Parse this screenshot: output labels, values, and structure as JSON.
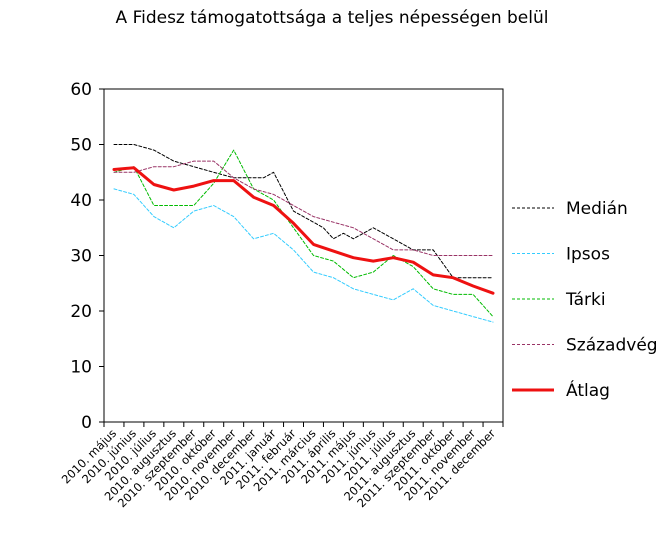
{
  "chart_data": {
    "type": "line",
    "title": "A Fidesz támogatottsága a teljes népességen belül",
    "xlabel": "",
    "ylabel": "",
    "ylim": [
      0,
      60
    ],
    "yticks": [
      0,
      10,
      20,
      30,
      40,
      50,
      60
    ],
    "grid": false,
    "legend": "right",
    "categories": [
      "2010. május",
      "2010. június",
      "2010. július",
      "2010. augusztus",
      "2010. szeptember",
      "2010. október",
      "2010. november",
      "2010. december",
      "2011. január",
      "2011. február",
      "2011. március",
      "2011. április",
      "2011. május",
      "2011. június",
      "2011. július",
      "2011. augusztus",
      "2011. szeptember",
      "2011. október",
      "2011. november",
      "2011. december"
    ],
    "series": [
      {
        "name": "Medián",
        "color": "#000000",
        "dash": "dashed",
        "x": [
          0,
          1,
          2,
          3,
          4,
          5,
          6,
          6.5,
          7,
          7.5,
          8,
          9,
          10,
          10.5,
          11,
          11.5,
          12,
          13,
          14,
          15,
          16,
          17,
          17.5,
          18,
          19
        ],
        "values": [
          50,
          50,
          49,
          47,
          46,
          45,
          44,
          44,
          44,
          44,
          45,
          38,
          36,
          35,
          33,
          34,
          33,
          35,
          33,
          31,
          31,
          26,
          26,
          26,
          26
        ]
      },
      {
        "name": "Ipsos",
        "color": "#33ccff",
        "dash": "dashed",
        "x": [
          0,
          1,
          2,
          3,
          4,
          5,
          6,
          7,
          8,
          9,
          10,
          11,
          12,
          13,
          14,
          15,
          16,
          17,
          18,
          19
        ],
        "values": [
          42,
          41,
          37,
          35,
          38,
          39,
          37,
          33,
          34,
          31,
          27,
          26,
          24,
          23,
          22,
          24,
          21,
          20,
          19,
          18
        ]
      },
      {
        "name": "Tárki",
        "color": "#00bb00",
        "dash": "dashed",
        "x": [
          0,
          1,
          2,
          3,
          4,
          5,
          6,
          7,
          8,
          9,
          10,
          11,
          12,
          13,
          14,
          15,
          16,
          17,
          18,
          19
        ],
        "values": [
          45,
          46,
          39,
          39,
          39,
          43,
          49,
          42,
          40,
          35,
          30,
          29,
          26,
          27,
          30,
          28,
          24,
          23,
          23,
          19
        ]
      },
      {
        "name": "Századvég",
        "color": "#993366",
        "dash": "dashed",
        "x": [
          0,
          1,
          2,
          3,
          4,
          5,
          6,
          7,
          8,
          9,
          10,
          11,
          12,
          13,
          14,
          15,
          16,
          17,
          18,
          19
        ],
        "values": [
          45,
          45,
          46,
          46,
          47,
          47,
          44,
          42,
          41,
          39,
          37,
          36,
          35,
          33,
          31,
          31,
          30,
          30,
          30,
          30
        ]
      },
      {
        "name": "Átlag",
        "color": "#ee1111",
        "dash": "solid",
        "width": 3,
        "x": [
          0,
          1,
          2,
          3,
          4,
          5,
          6,
          7,
          8,
          9,
          10,
          11,
          12,
          13,
          14,
          15,
          16,
          17,
          18,
          19
        ],
        "values": [
          45.5,
          45.8,
          42.8,
          41.8,
          42.5,
          43.5,
          43.5,
          40.5,
          39,
          35.8,
          32,
          30.8,
          29.6,
          29,
          29.6,
          28.8,
          26.5,
          26,
          24.5,
          23.2
        ]
      }
    ]
  }
}
